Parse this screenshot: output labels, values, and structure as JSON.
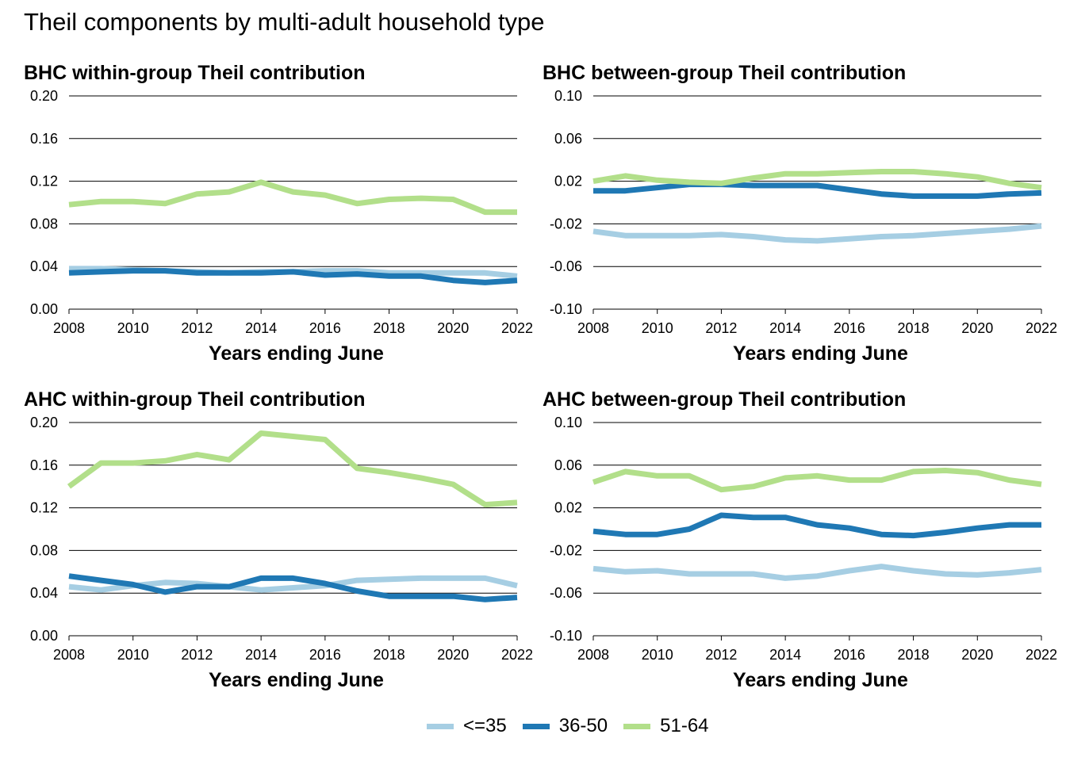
{
  "title": "Theil components by multi-adult household type",
  "colors": {
    "<=35": "#a6cee3",
    "36-50": "#1f78b4",
    "51-64": "#b2df8a"
  },
  "legend": [
    {
      "name": "<=35",
      "color": "#a6cee3"
    },
    {
      "name": "36-50",
      "color": "#1f78b4"
    },
    {
      "name": "51-64",
      "color": "#b2df8a"
    }
  ],
  "chart_data": [
    {
      "type": "line",
      "title": "BHC within-group Theil contribution",
      "xlabel": "Years ending June",
      "ylabel": "",
      "xlim": [
        2008,
        2022
      ],
      "ylim": [
        0,
        0.2
      ],
      "xticks": [
        "2008",
        "2010",
        "2012",
        "2014",
        "2016",
        "2018",
        "2020",
        "2022"
      ],
      "yticks": [
        "0.00",
        "0.04",
        "0.08",
        "0.12",
        "0.16",
        "0.20"
      ],
      "grid": true,
      "x": [
        2008,
        2009,
        2010,
        2011,
        2012,
        2013,
        2014,
        2015,
        2016,
        2017,
        2018,
        2019,
        2020,
        2021,
        2022
      ],
      "series": [
        {
          "name": "<=35",
          "values": [
            0.038,
            0.038,
            0.037,
            0.036,
            0.035,
            0.034,
            0.035,
            0.035,
            0.036,
            0.036,
            0.034,
            0.034,
            0.034,
            0.034,
            0.031
          ]
        },
        {
          "name": "36-50",
          "values": [
            0.034,
            0.035,
            0.036,
            0.036,
            0.034,
            0.034,
            0.034,
            0.035,
            0.032,
            0.033,
            0.031,
            0.031,
            0.027,
            0.025,
            0.027
          ]
        },
        {
          "name": "51-64",
          "values": [
            0.098,
            0.101,
            0.101,
            0.099,
            0.108,
            0.11,
            0.119,
            0.11,
            0.107,
            0.099,
            0.103,
            0.104,
            0.103,
            0.091,
            0.091
          ]
        }
      ]
    },
    {
      "type": "line",
      "title": "BHC between-group Theil contribution",
      "xlabel": "Years ending June",
      "ylabel": "",
      "xlim": [
        2008,
        2022
      ],
      "ylim": [
        -0.1,
        0.1
      ],
      "xticks": [
        "2008",
        "2010",
        "2012",
        "2014",
        "2016",
        "2018",
        "2020",
        "2022"
      ],
      "yticks": [
        "-0.10",
        "-0.06",
        "-0.02",
        "0.02",
        "0.06",
        "0.10"
      ],
      "grid": true,
      "x": [
        2008,
        2009,
        2010,
        2011,
        2012,
        2013,
        2014,
        2015,
        2016,
        2017,
        2018,
        2019,
        2020,
        2021,
        2022
      ],
      "series": [
        {
          "name": "<=35",
          "values": [
            -0.027,
            -0.031,
            -0.031,
            -0.031,
            -0.03,
            -0.032,
            -0.035,
            -0.036,
            -0.034,
            -0.032,
            -0.031,
            -0.029,
            -0.027,
            -0.025,
            -0.022
          ]
        },
        {
          "name": "36-50",
          "values": [
            0.011,
            0.011,
            0.014,
            0.017,
            0.017,
            0.016,
            0.016,
            0.016,
            0.012,
            0.008,
            0.006,
            0.006,
            0.006,
            0.008,
            0.009
          ]
        },
        {
          "name": "51-64",
          "values": [
            0.02,
            0.025,
            0.021,
            0.019,
            0.018,
            0.023,
            0.027,
            0.027,
            0.028,
            0.029,
            0.029,
            0.027,
            0.024,
            0.018,
            0.014
          ]
        }
      ]
    },
    {
      "type": "line",
      "title": "AHC within-group Theil contribution",
      "xlabel": "Years ending June",
      "ylabel": "",
      "xlim": [
        2008,
        2022
      ],
      "ylim": [
        0,
        0.2
      ],
      "xticks": [
        "2008",
        "2010",
        "2012",
        "2014",
        "2016",
        "2018",
        "2020",
        "2022"
      ],
      "yticks": [
        "0.00",
        "0.04",
        "0.08",
        "0.12",
        "0.16",
        "0.20"
      ],
      "grid": true,
      "x": [
        2008,
        2009,
        2010,
        2011,
        2012,
        2013,
        2014,
        2015,
        2016,
        2017,
        2018,
        2019,
        2020,
        2021,
        2022
      ],
      "series": [
        {
          "name": "<=35",
          "values": [
            0.046,
            0.043,
            0.047,
            0.05,
            0.049,
            0.046,
            0.043,
            0.045,
            0.047,
            0.052,
            0.053,
            0.054,
            0.054,
            0.054,
            0.047
          ]
        },
        {
          "name": "36-50",
          "values": [
            0.056,
            0.052,
            0.048,
            0.041,
            0.046,
            0.046,
            0.054,
            0.054,
            0.049,
            0.042,
            0.037,
            0.037,
            0.037,
            0.034,
            0.036
          ]
        },
        {
          "name": "51-64",
          "values": [
            0.14,
            0.162,
            0.162,
            0.164,
            0.17,
            0.165,
            0.19,
            0.187,
            0.184,
            0.157,
            0.153,
            0.148,
            0.142,
            0.123,
            0.125
          ]
        }
      ]
    },
    {
      "type": "line",
      "title": "AHC between-group Theil contribution",
      "xlabel": "Years ending June",
      "ylabel": "",
      "xlim": [
        2008,
        2022
      ],
      "ylim": [
        -0.1,
        0.1
      ],
      "xticks": [
        "2008",
        "2010",
        "2012",
        "2014",
        "2016",
        "2018",
        "2020",
        "2022"
      ],
      "yticks": [
        "-0.10",
        "-0.06",
        "-0.02",
        "0.02",
        "0.06",
        "0.10"
      ],
      "grid": true,
      "x": [
        2008,
        2009,
        2010,
        2011,
        2012,
        2013,
        2014,
        2015,
        2016,
        2017,
        2018,
        2019,
        2020,
        2021,
        2022
      ],
      "series": [
        {
          "name": "<=35",
          "values": [
            -0.037,
            -0.04,
            -0.039,
            -0.042,
            -0.042,
            -0.042,
            -0.046,
            -0.044,
            -0.039,
            -0.035,
            -0.039,
            -0.042,
            -0.043,
            -0.041,
            -0.038
          ]
        },
        {
          "name": "36-50",
          "values": [
            -0.002,
            -0.005,
            -0.005,
            0.0,
            0.013,
            0.011,
            0.011,
            0.004,
            0.001,
            -0.005,
            -0.006,
            -0.003,
            0.001,
            0.004,
            0.004
          ]
        },
        {
          "name": "51-64",
          "values": [
            0.044,
            0.054,
            0.05,
            0.05,
            0.037,
            0.04,
            0.048,
            0.05,
            0.046,
            0.046,
            0.054,
            0.055,
            0.053,
            0.046,
            0.042
          ]
        }
      ]
    }
  ]
}
